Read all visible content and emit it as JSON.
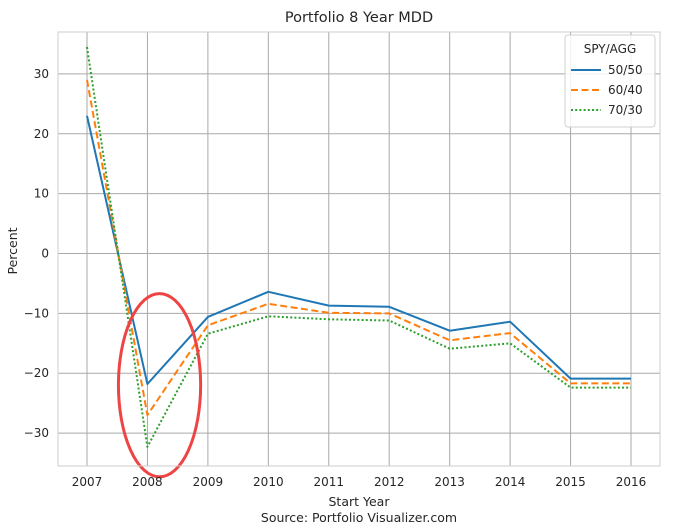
{
  "chart_data": {
    "type": "line",
    "title": "Portfolio 8 Year MDD",
    "xlabel": "Start Year",
    "ylabel": "Percent",
    "caption": "Source: Portfolio Visualizer.com",
    "x": [
      2007,
      2008,
      2009,
      2010,
      2011,
      2012,
      2013,
      2014,
      2015,
      2016
    ],
    "xticks": [
      "2007",
      "2008",
      "2009",
      "2010",
      "2011",
      "2012",
      "2013",
      "2014",
      "2015",
      "2016"
    ],
    "yticks": [
      30,
      20,
      10,
      0,
      -10,
      -20,
      -30
    ],
    "ylim": [
      -35.5,
      37
    ],
    "grid": true,
    "legend": {
      "title": "SPY/AGG",
      "position": "top-right"
    },
    "series": [
      {
        "name": "50/50",
        "color": "#1f77b4",
        "style": "solid",
        "values": [
          23.0,
          -21.8,
          -10.6,
          -6.4,
          -8.7,
          -8.9,
          -12.9,
          -11.4,
          -20.9,
          -20.9
        ]
      },
      {
        "name": "60/40",
        "color": "#ff7f0e",
        "style": "dashed",
        "values": [
          29.0,
          -27.0,
          -12.0,
          -8.4,
          -9.9,
          -10.0,
          -14.5,
          -13.3,
          -21.7,
          -21.7
        ]
      },
      {
        "name": "70/30",
        "color": "#2ca02c",
        "style": "dotted",
        "values": [
          34.5,
          -32.3,
          -13.4,
          -10.5,
          -11.0,
          -11.2,
          -15.9,
          -15.0,
          -22.4,
          -22.4
        ]
      }
    ],
    "annotations": [
      {
        "type": "circle",
        "color": "#ef4444",
        "center_x": 2008.2,
        "center_y": -22.0,
        "radius_x_years": 0.68,
        "radius_y_units": 15.3
      }
    ]
  }
}
